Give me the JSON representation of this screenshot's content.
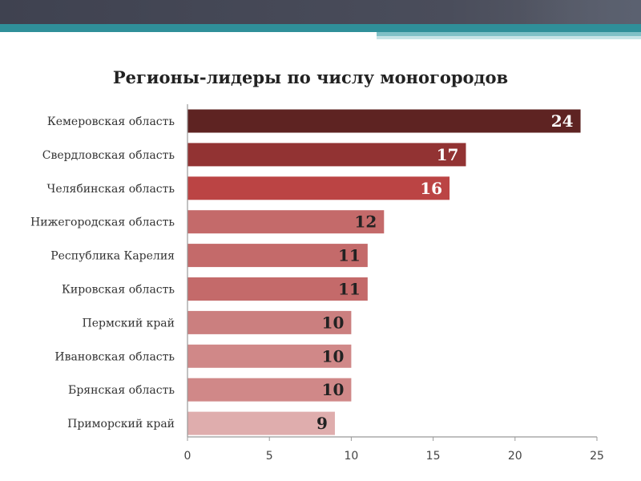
{
  "chart_data": {
    "type": "bar",
    "orientation": "horizontal",
    "title": "Регионы-лидеры по числу моногородов",
    "categories": [
      "Кемеровская область",
      "Свердловская область",
      "Челябинская область",
      "Нижегородская область",
      "Республика Карелия",
      "Кировская область",
      "Пермский край",
      "Ивановская область",
      "Брянская область",
      "Приморский край"
    ],
    "values": [
      24,
      17,
      16,
      12,
      11,
      11,
      10,
      10,
      10,
      9
    ],
    "value_labels": [
      "24",
      "17",
      "16",
      "12",
      "11",
      "11",
      "10",
      "10",
      "10",
      "9"
    ],
    "bar_colors": [
      "#5e2322",
      "#923333",
      "#bb4444",
      "#c46a6a",
      "#c46a6a",
      "#c46a6a",
      "#cb7f7f",
      "#d08888",
      "#d08888",
      "#dfadad"
    ],
    "label_colors": [
      "#ffffff",
      "#ffffff",
      "#ffffff",
      "#222222",
      "#222222",
      "#222222",
      "#222222",
      "#222222",
      "#222222",
      "#222222"
    ],
    "xlim": [
      0,
      25
    ],
    "xticks": [
      0,
      5,
      10,
      15,
      20,
      25
    ],
    "xtick_labels": [
      "0",
      "5",
      "10",
      "15",
      "20",
      "25"
    ],
    "grid": false,
    "legend": "none"
  }
}
